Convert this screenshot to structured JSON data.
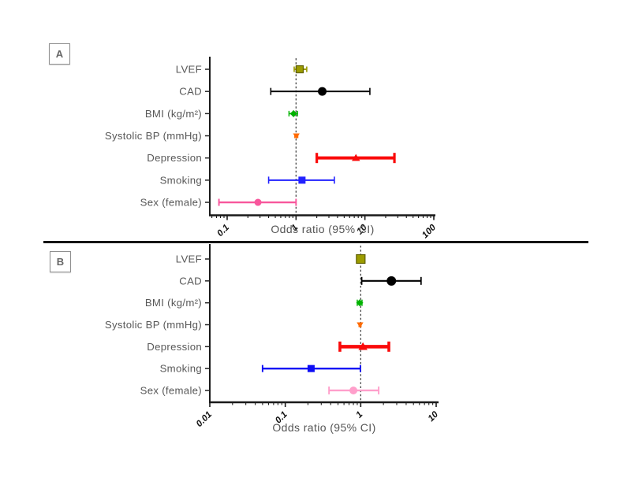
{
  "figure": {
    "background": "#ffffff",
    "divider_color": "#151515",
    "text_color": "#585858",
    "tick_label_color": "#111111"
  },
  "chart_data": [
    {
      "type": "forest",
      "panel_label": "A",
      "xlabel": "Odds ratio (95% CI)",
      "x_scale": "log",
      "xlim": [
        0.056,
        100
      ],
      "x_major_ticks": [
        0.1,
        1,
        10,
        100
      ],
      "x_tick_labels": [
        "0.1",
        "1",
        "10",
        "100"
      ],
      "reference_line": 1,
      "grid": false,
      "categories": [
        "LVEF",
        "CAD",
        "BMI (kg/m²)",
        "Systolic BP (mmHg)",
        "Depression",
        "Smoking",
        "Sex (female)"
      ],
      "points": [
        {
          "label": "LVEF",
          "or": 1.13,
          "ci_low": 0.94,
          "ci_high": 1.43,
          "color": "#9C9C00",
          "stroke": "#5E5E00",
          "marker": "square",
          "size": 9,
          "lw": 2,
          "cap": 7
        },
        {
          "label": "CAD",
          "or": 2.4,
          "ci_low": 0.43,
          "ci_high": 11.8,
          "color": "#000000",
          "stroke": "",
          "marker": "circle",
          "size": 11,
          "lw": 2,
          "cap": 9
        },
        {
          "label": "BMI (kg/m²)",
          "or": 0.92,
          "ci_low": 0.79,
          "ci_high": 1.05,
          "color": "#00B200",
          "stroke": "",
          "marker": "diamond",
          "size": 9,
          "lw": 1.8,
          "cap": 7
        },
        {
          "label": "Systolic BP (mmHg)",
          "or": 1.01,
          "ci_low": 0.96,
          "ci_high": 1.06,
          "color": "#FF6A00",
          "stroke": "",
          "marker": "triangle-down",
          "size": 8,
          "lw": 1.6,
          "cap": 6
        },
        {
          "label": "Depression",
          "or": 7.4,
          "ci_low": 2.0,
          "ci_high": 26.8,
          "color": "#FA0A0A",
          "stroke": "",
          "marker": "triangle-up",
          "size": 10,
          "lw": 4,
          "cap": 13
        },
        {
          "label": "Smoking",
          "or": 1.22,
          "ci_low": 0.4,
          "ci_high": 3.6,
          "color": "#2222FF",
          "stroke": "",
          "marker": "square",
          "size": 9,
          "lw": 2,
          "cap": 9
        },
        {
          "label": "Sex (female)",
          "or": 0.28,
          "ci_low": 0.076,
          "ci_high": 1.0,
          "color": "#F8569C",
          "stroke": "",
          "marker": "circle",
          "size": 9,
          "lw": 2.4,
          "cap": 9
        }
      ]
    },
    {
      "type": "forest",
      "panel_label": "B",
      "xlabel": "Odds ratio (95% CI)",
      "x_scale": "log",
      "xlim": [
        0.01,
        10
      ],
      "x_major_ticks": [
        0.01,
        0.1,
        1,
        10
      ],
      "x_tick_labels": [
        "0.01",
        "0.1",
        "1",
        "10"
      ],
      "reference_line": 1,
      "grid": false,
      "categories": [
        "LVEF",
        "CAD",
        "BMI (kg/m²)",
        "Systolic BP (mmHg)",
        "Depression",
        "Smoking",
        "Sex (female)"
      ],
      "points": [
        {
          "label": "LVEF",
          "or": 1.0,
          "ci_low": 0.94,
          "ci_high": 1.07,
          "color": "#9C9C00",
          "stroke": "#5E5E00",
          "marker": "square",
          "size": 11,
          "lw": 2,
          "cap": 7
        },
        {
          "label": "CAD",
          "or": 2.55,
          "ci_low": 1.03,
          "ci_high": 6.3,
          "color": "#000000",
          "stroke": "",
          "marker": "circle",
          "size": 12,
          "lw": 2.2,
          "cap": 10
        },
        {
          "label": "BMI (kg/m²)",
          "or": 0.97,
          "ci_low": 0.9,
          "ci_high": 1.04,
          "color": "#00B200",
          "stroke": "",
          "marker": "diamond",
          "size": 9,
          "lw": 1.8,
          "cap": 8
        },
        {
          "label": "Systolic BP (mmHg)",
          "or": 0.98,
          "ci_low": 0.95,
          "ci_high": 1.01,
          "color": "#FF6A00",
          "stroke": "",
          "marker": "triangle-down",
          "size": 8,
          "lw": 1.6,
          "cap": 6
        },
        {
          "label": "Depression",
          "or": 1.07,
          "ci_low": 0.53,
          "ci_high": 2.36,
          "color": "#FA0A0A",
          "stroke": "",
          "marker": "triangle-up",
          "size": 11,
          "lw": 4.5,
          "cap": 13
        },
        {
          "label": "Smoking",
          "or": 0.22,
          "ci_low": 0.05,
          "ci_high": 0.99,
          "color": "#0D0DF5",
          "stroke": "",
          "marker": "square",
          "size": 9,
          "lw": 2.4,
          "cap": 9
        },
        {
          "label": "Sex (female)",
          "or": 0.8,
          "ci_low": 0.38,
          "ci_high": 1.73,
          "color": "#FF9FCB",
          "stroke": "",
          "marker": "circle",
          "size": 10,
          "lw": 2.4,
          "cap": 10
        }
      ]
    }
  ]
}
